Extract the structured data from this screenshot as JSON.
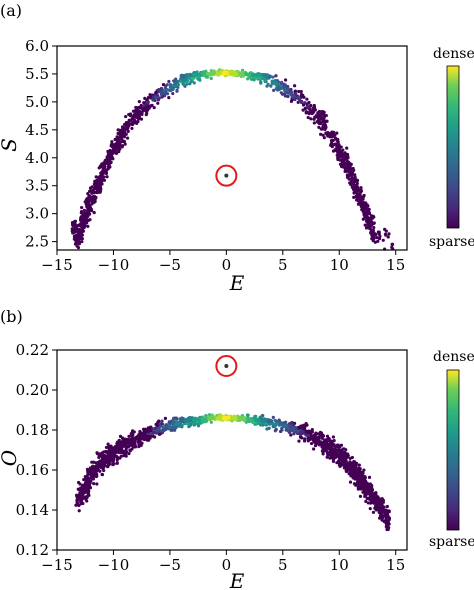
{
  "colors": {
    "sparse": "#440154",
    "dense": "#fde725",
    "highlight": "#e31a1c",
    "outlier": "#333333"
  },
  "chart_data": [
    {
      "type": "scatter",
      "panel_label": "(a)",
      "xlabel": "E",
      "ylabel": "S",
      "xlim": [
        -15,
        16
      ],
      "ylim": [
        2.35,
        6.0
      ],
      "xticks": [
        -15,
        -10,
        -5,
        0,
        5,
        10,
        15
      ],
      "yticks": [
        2.5,
        3.0,
        3.5,
        4.0,
        4.5,
        5.0,
        5.5,
        6.0
      ],
      "ytick_decimals": 1,
      "grid": false,
      "colorbar": {
        "top_label": "dense",
        "bottom_label": "sparse"
      },
      "series": [
        {
          "values_description_omitted": true,
          "band": {
            "peak_x": 0,
            "peak_y": 5.52,
            "x_range": [
              -13.6,
              14.7
            ]
          },
          "x": [
            -13.6,
            -13.3,
            -12.9,
            -12.6,
            -12.3,
            -12.1,
            -11.8,
            -11.5,
            -11.2,
            -10.9,
            -10.6,
            -10.2,
            -9.8,
            -9.3,
            -8.7,
            -8.0,
            -7.2,
            -6.3,
            -5.3,
            -4.3,
            -3.2,
            -2.1,
            -1.0,
            0.0,
            1.0,
            2.1,
            3.2,
            4.3,
            5.3,
            6.3,
            7.2,
            8.0,
            8.7,
            9.3,
            9.8,
            10.2,
            10.6,
            10.9,
            11.2,
            11.5,
            11.8,
            12.1,
            12.4,
            12.7,
            13.0,
            14.7
          ],
          "y": [
            2.8,
            2.55,
            2.7,
            2.9,
            3.0,
            3.15,
            3.3,
            3.45,
            3.6,
            3.75,
            3.9,
            4.05,
            4.2,
            4.38,
            4.58,
            4.76,
            4.93,
            5.08,
            5.22,
            5.33,
            5.42,
            5.48,
            5.51,
            5.52,
            5.51,
            5.48,
            5.42,
            5.33,
            5.22,
            5.08,
            4.93,
            4.76,
            4.58,
            4.38,
            4.2,
            4.05,
            3.9,
            3.75,
            3.6,
            3.45,
            3.3,
            3.15,
            3.0,
            2.85,
            2.7,
            2.45
          ]
        }
      ],
      "outlier": {
        "x": 0.0,
        "y": 3.68
      }
    },
    {
      "type": "scatter",
      "panel_label": "(b)",
      "xlabel": "E",
      "ylabel": "O",
      "xlim": [
        -15,
        16
      ],
      "ylim": [
        0.12,
        0.22
      ],
      "xticks": [
        -15,
        -10,
        -5,
        0,
        5,
        10,
        15
      ],
      "yticks": [
        0.12,
        0.14,
        0.16,
        0.18,
        0.2,
        0.22
      ],
      "ytick_decimals": 2,
      "grid": false,
      "colorbar": {
        "top_label": "dense",
        "bottom_label": "sparse"
      },
      "series": [
        {
          "band": {
            "peak_x": 0,
            "peak_y": 0.186,
            "x_range": [
              -13.2,
              14.4
            ]
          },
          "x": [
            -13.2,
            -12.8,
            -12.4,
            -12.0,
            -11.6,
            -11.2,
            -10.8,
            -10.4,
            -10.0,
            -9.5,
            -9.0,
            -8.4,
            -7.7,
            -7.0,
            -6.2,
            -5.3,
            -4.4,
            -3.4,
            -2.3,
            -1.2,
            0.0,
            1.2,
            2.3,
            3.4,
            4.4,
            5.3,
            6.2,
            7.0,
            7.7,
            8.4,
            9.0,
            9.5,
            10.0,
            10.4,
            10.8,
            11.2,
            11.6,
            12.0,
            12.4,
            12.8,
            13.3,
            14.0,
            14.4
          ],
          "y": [
            0.145,
            0.148,
            0.152,
            0.156,
            0.16,
            0.163,
            0.165,
            0.167,
            0.168,
            0.17,
            0.172,
            0.174,
            0.176,
            0.178,
            0.18,
            0.182,
            0.183,
            0.184,
            0.185,
            0.186,
            0.186,
            0.186,
            0.185,
            0.184,
            0.183,
            0.182,
            0.18,
            0.178,
            0.176,
            0.174,
            0.172,
            0.17,
            0.168,
            0.166,
            0.163,
            0.16,
            0.157,
            0.154,
            0.151,
            0.148,
            0.144,
            0.139,
            0.133
          ]
        }
      ],
      "outlier": {
        "x": 0.0,
        "y": 0.212
      }
    }
  ]
}
